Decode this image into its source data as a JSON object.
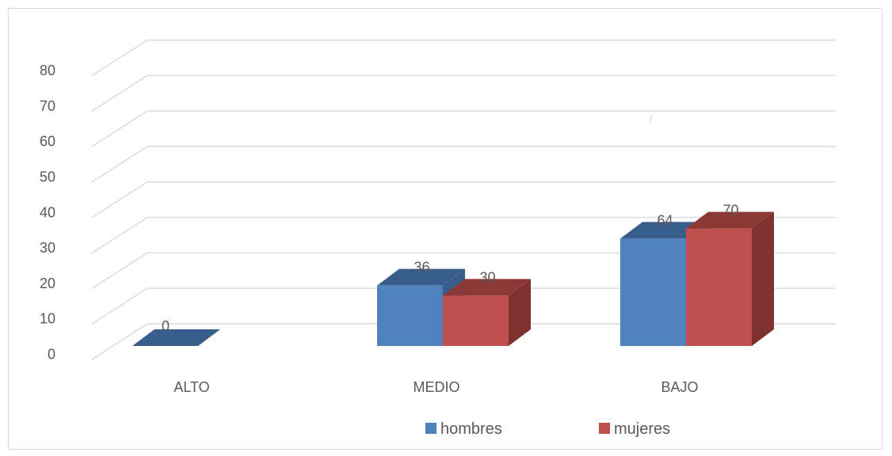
{
  "chart_data": {
    "type": "bar",
    "categories": [
      "ALTO",
      "MEDIO",
      "BAJO"
    ],
    "series": [
      {
        "name": "hombres",
        "values": [
          0,
          36,
          64
        ],
        "color": "#4f81bd",
        "top_color": "#385d8a",
        "side_color": "#385d8a"
      },
      {
        "name": "mujeres",
        "values": [
          0,
          30,
          70
        ],
        "color": "#c0504d",
        "top_color": "#8c3836",
        "side_color": "#7f3130"
      }
    ],
    "visible_data_labels": [
      [
        "0",
        null
      ],
      [
        "36",
        "30"
      ],
      [
        "64",
        "70"
      ]
    ],
    "y_ticks": [
      "0",
      "10",
      "20",
      "30",
      "40",
      "50",
      "60",
      "70",
      "80"
    ],
    "ylim": [
      0,
      80
    ],
    "grid": true,
    "legend": "bottom",
    "three_d": true
  }
}
